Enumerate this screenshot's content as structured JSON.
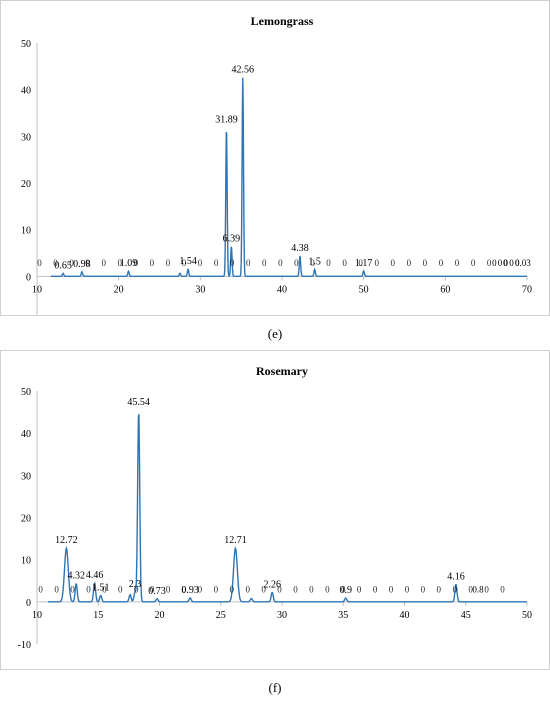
{
  "figures": [
    {
      "caption": "(e)"
    },
    {
      "caption": "(f)"
    }
  ],
  "colors": {
    "line": "#2e75b6",
    "axis": "#bfbfbf",
    "text": "#000000"
  },
  "chart_data": [
    {
      "type": "line",
      "title": "Lemongrass",
      "xlim": [
        10,
        70
      ],
      "ylim": [
        -10,
        50
      ],
      "xticks": [
        10,
        20,
        30,
        40,
        50,
        60,
        70
      ],
      "yticks": [
        -10,
        0,
        10,
        20,
        30,
        40,
        50
      ],
      "peaks": [
        {
          "x": 13.2,
          "y": 0.65,
          "label": "0.65"
        },
        {
          "x": 15.5,
          "y": 0.98,
          "label": "0.98"
        },
        {
          "x": 21.2,
          "y": 1.09,
          "label": "1.09"
        },
        {
          "x": 27.5,
          "y": 0.65,
          "label": ""
        },
        {
          "x": 28.5,
          "y": 1.54,
          "label": "1.54"
        },
        {
          "x": 33.2,
          "y": 31.89,
          "label": "31.89"
        },
        {
          "x": 33.8,
          "y": 6.39,
          "label": "6.39"
        },
        {
          "x": 35.2,
          "y": 42.56,
          "label": "42.56"
        },
        {
          "x": 42.2,
          "y": 4.38,
          "label": "4.38"
        },
        {
          "x": 44.0,
          "y": 1.5,
          "label": "1.5"
        },
        {
          "x": 50.0,
          "y": 1.17,
          "label": "1.17"
        }
      ],
      "baseline_labels": [
        "0",
        "0",
        "0",
        "0",
        "0",
        "0.03"
      ]
    },
    {
      "type": "line",
      "title": "Rosemary",
      "xlim": [
        10,
        50
      ],
      "ylim": [
        -10,
        50
      ],
      "xticks": [
        10,
        15,
        20,
        25,
        30,
        35,
        40,
        45,
        50
      ],
      "yticks": [
        -10,
        0,
        10,
        20,
        30,
        40,
        50
      ],
      "peaks": [
        {
          "x": 12.4,
          "y": 12.72,
          "label": "12.72"
        },
        {
          "x": 13.2,
          "y": 4.32,
          "label": "4.32"
        },
        {
          "x": 14.7,
          "y": 4.46,
          "label": "4.46"
        },
        {
          "x": 15.2,
          "y": 1.51,
          "label": "1.51"
        },
        {
          "x": 17.6,
          "y": 1.7,
          "label": ""
        },
        {
          "x": 18.0,
          "y": 2.3,
          "label": "2.3"
        },
        {
          "x": 18.3,
          "y": 45.54,
          "label": "45.54"
        },
        {
          "x": 19.8,
          "y": 0.73,
          "label": "0.73"
        },
        {
          "x": 22.5,
          "y": 0.93,
          "label": "0.93"
        },
        {
          "x": 26.2,
          "y": 12.71,
          "label": "12.71"
        },
        {
          "x": 27.5,
          "y": 0.8,
          "label": ""
        },
        {
          "x": 29.2,
          "y": 2.26,
          "label": "2.26"
        },
        {
          "x": 35.2,
          "y": 0.9,
          "label": "0.9"
        },
        {
          "x": 44.2,
          "y": 4.16,
          "label": "4.16"
        }
      ],
      "baseline_labels": [
        "0.8"
      ]
    }
  ]
}
